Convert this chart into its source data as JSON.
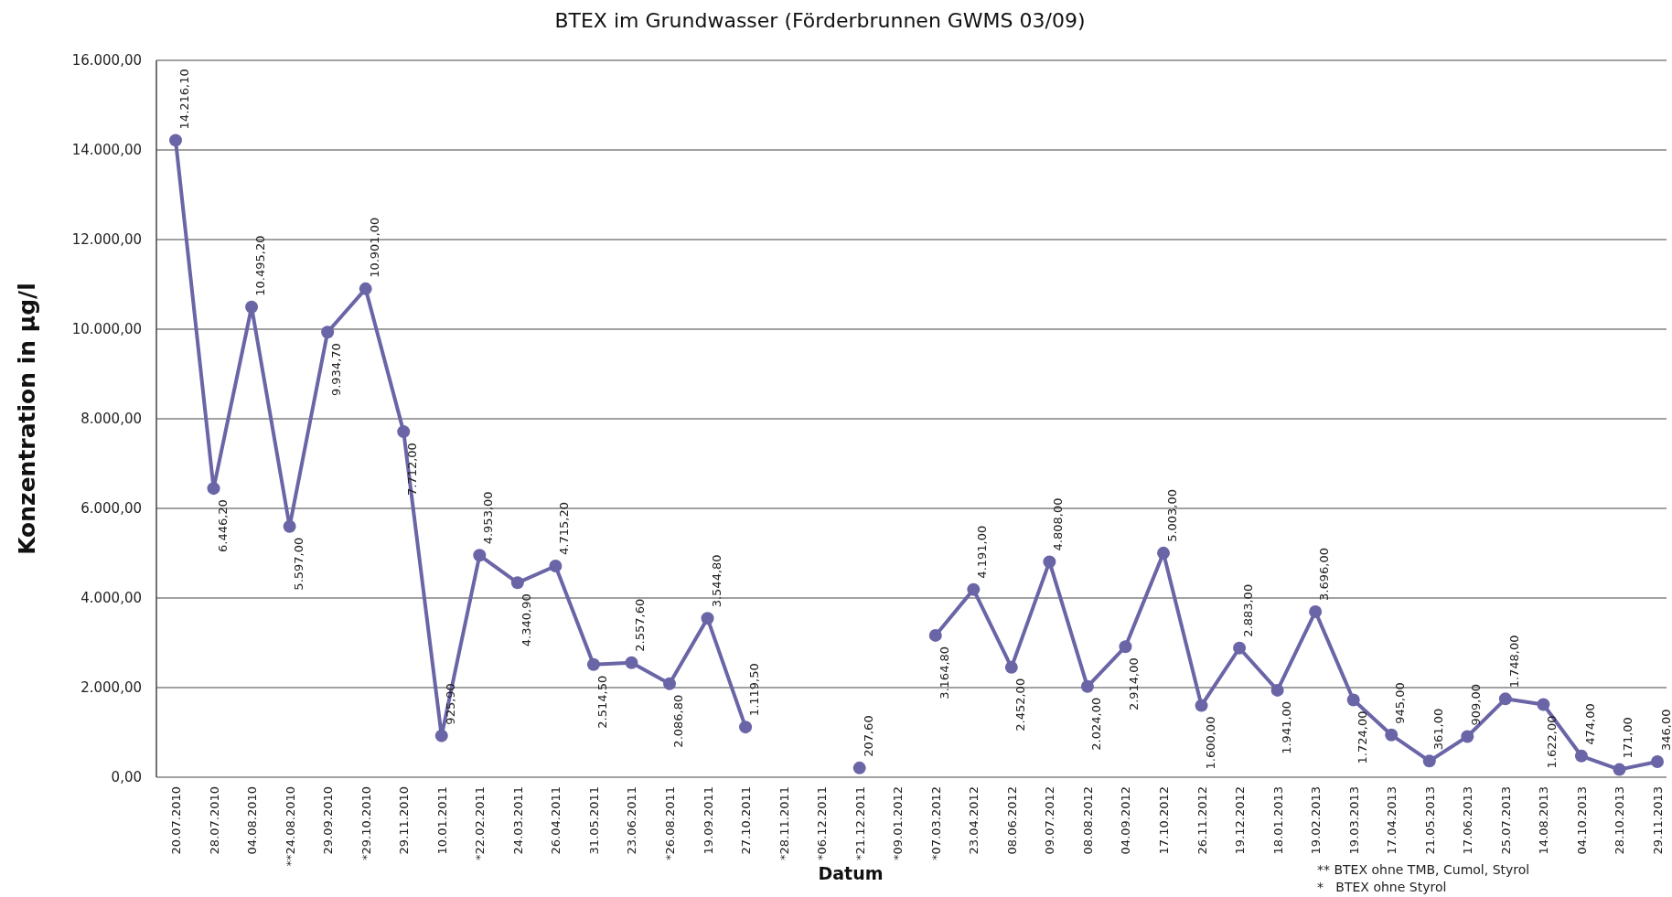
{
  "chart_data": {
    "type": "line",
    "title": "BTEX im Grundwasser (Förderbrunnen  GWMS 03/09)",
    "xlabel": "Datum",
    "ylabel": "Konzentration in µg/l",
    "categories": [
      "20.07.2010",
      "28.07.2010",
      "04.08.2010",
      "**24.08.2010",
      "29.09.2010",
      "*29.10.2010",
      "29.11.2010",
      "10.01.2011",
      "*22.02.2011",
      "24.03.2011",
      "26.04.2011",
      "31.05.2011",
      "23.06.2011",
      "*26.08.2011",
      "19.09.2011",
      "27.10.2011",
      "*28.11.2011",
      "*06.12.2011",
      "*21.12.2011",
      "*09.01.2012",
      "*07.03.2012",
      "23.04.2012",
      "08.06.2012",
      "09.07.2012",
      "08.08.2012",
      "04.09.2012",
      "17.10.2012",
      "26.11.2012",
      "19.12.2012",
      "18.01.2013",
      "19.02.2013",
      "19.03.2013",
      "17.04.2013",
      "21.05.2013",
      "17.06.2013",
      "25.07.2013",
      "14.08.2013",
      "04.10.2013",
      "28.10.2013",
      "29.11.2013"
    ],
    "series": [
      {
        "color": "#6a65a6",
        "values": [
          14216.1,
          6446.2,
          10495.2,
          5597,
          9934.7,
          10901,
          7712,
          925.9,
          4953,
          4340.9,
          4715.2,
          2514.5,
          2557.6,
          2086.8,
          3544.8,
          1119.5,
          null,
          null,
          207.6,
          null,
          3164.8,
          4191,
          2452,
          4808,
          2024,
          2914,
          5003,
          1600,
          2883,
          1941,
          3696,
          1724,
          945,
          361,
          909,
          1748,
          1622,
          474,
          171,
          346
        ],
        "value_labels": [
          "14.216,10",
          "6.446,20",
          "10.495,20",
          "5.597,00",
          "9.934,70",
          "10.901,00",
          "7.712,00",
          "925,90",
          "4.953,00",
          "4.340,90",
          "4.715,20",
          "2.514,50",
          "2.557,60",
          "2.086,80",
          "3.544,80",
          "1.119,50",
          null,
          null,
          "207,60",
          null,
          "3.164,80",
          "4.191,00",
          "2.452,00",
          "4.808,00",
          "2.024,00",
          "2.914,00",
          "5.003,00",
          "1.600,00",
          "2.883,00",
          "1.941,00",
          "3.696,00",
          "1.724,00",
          "945,00",
          "361,00",
          "909,00",
          "1.748,00",
          "1.622,00",
          "474,00",
          "171,00",
          "346,00"
        ]
      }
    ],
    "ylim": [
      0,
      16000
    ],
    "yticks": [
      {
        "value": 0,
        "label": "0,00"
      },
      {
        "value": 2000,
        "label": "2.000,00"
      },
      {
        "value": 4000,
        "label": "4.000,00"
      },
      {
        "value": 6000,
        "label": "6.000,00"
      },
      {
        "value": 8000,
        "label": "8.000,00"
      },
      {
        "value": 10000,
        "label": "10.000,00"
      },
      {
        "value": 12000,
        "label": "12.000,00"
      },
      {
        "value": 14000,
        "label": "14.000,00"
      },
      {
        "value": 16000,
        "label": "16.000,00"
      }
    ],
    "grid": "y",
    "marker": "circle",
    "line_style": "solid",
    "annotations": [
      "** BTEX ohne TMB, Cumol, Styrol",
      "*   BTEX ohne Styrol"
    ]
  }
}
